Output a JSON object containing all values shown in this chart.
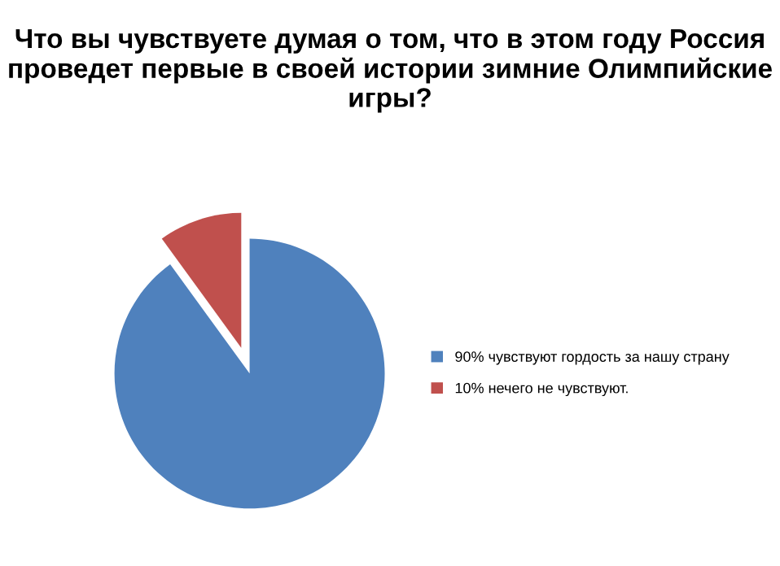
{
  "chart_data": {
    "type": "pie",
    "title": "Что вы чувствуете думая о том, что в этом году Россия проведет первые в своей истории зимние Олимпийские игры?",
    "categories": [
      "90% чувствуют гордость за нашу страну",
      "10% нечего не чувствуют."
    ],
    "values": [
      90,
      10
    ],
    "colors": [
      "#4f81bd",
      "#c0504d"
    ],
    "legend": "right"
  }
}
